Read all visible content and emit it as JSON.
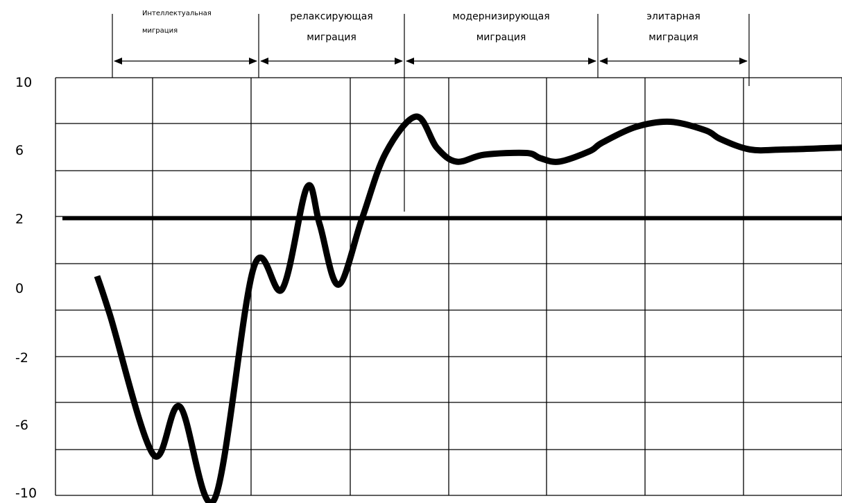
{
  "chart_data": {
    "type": "line",
    "title": "",
    "xlabel": "",
    "ylabel": "",
    "y_tick_labels": [
      "10",
      "6",
      "2",
      "0",
      "-2",
      "-6",
      "-10"
    ],
    "grid": true,
    "reference_line": {
      "y_label": "2"
    },
    "phases": [
      {
        "line1": "Интеллектуальная",
        "line2": "миграция"
      },
      {
        "line1": "релаксирующая",
        "line2": "миграция"
      },
      {
        "line1": "модернизирующая",
        "line2": "миграция"
      },
      {
        "line1": "элитарная",
        "line2": "миграция"
      }
    ],
    "series": [
      {
        "x": [
          0,
          0.13,
          0.57,
          0.84,
          1.19,
          1.59,
          1.88,
          2.13,
          2.26,
          2.45,
          2.69,
          2.93,
          3.24,
          3.45,
          3.65,
          3.93,
          4.36,
          4.5,
          4.69,
          5.0,
          5.13,
          5.47,
          5.82,
          6.18,
          6.33,
          6.63,
          6.97,
          7.5,
          8.0,
          8.5,
          8.85
        ],
        "y": [
          0.0,
          -0.9,
          -7.7,
          -6.4,
          -10.0,
          0.3,
          -0.3,
          4.3,
          1.8,
          -0.2,
          2.0,
          6.7,
          8.8,
          7.0,
          6.2,
          6.6,
          6.7,
          6.4,
          6.2,
          6.8,
          7.3,
          8.2,
          8.5,
          8.0,
          7.5,
          6.9,
          6.9,
          7.0,
          7.1,
          7.4,
          7.7
        ]
      }
    ]
  }
}
